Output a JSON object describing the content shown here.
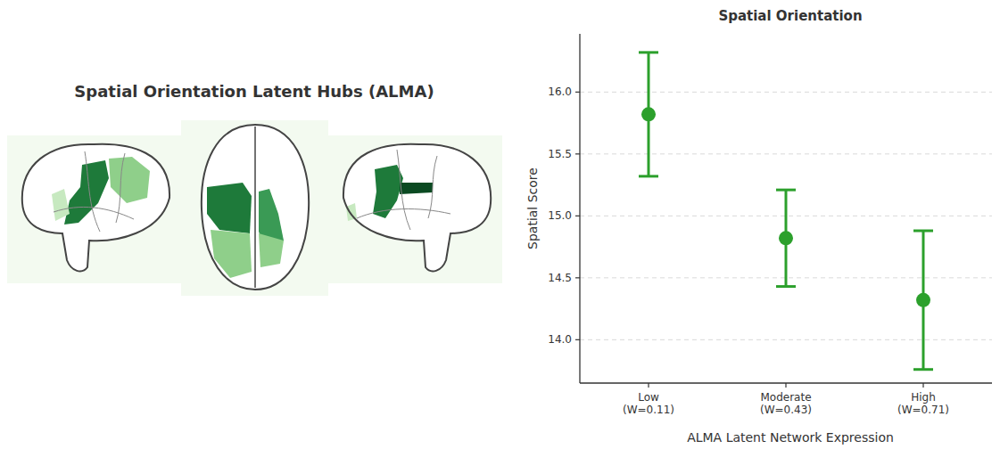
{
  "chart_data": [
    {
      "type": "brain_map",
      "title": "Spatial Orientation Latent Hubs (ALMA)"
    },
    {
      "type": "point",
      "title": "Spatial Orientation",
      "x_label": "ALMA Latent Network Expression",
      "y_label": "Spatial Score",
      "categories": [
        "Low\n(W=0.11)",
        "Moderate\n(W=0.43)",
        "High\n(W=0.71)"
      ],
      "values": [
        15.82,
        14.82,
        14.32
      ],
      "errors": [
        0.5,
        0.39,
        0.56
      ],
      "color": "#2ca02c",
      "marker": "circle",
      "ylim": [
        13.65,
        16.47
      ],
      "yticks": [
        {
          "value": 14,
          "label": "14.0"
        },
        {
          "value": 14.5,
          "label": "14.5"
        },
        {
          "value": 15,
          "label": "15.0"
        },
        {
          "value": 15.5,
          "label": "15.5"
        },
        {
          "value": 16,
          "label": "16.0"
        }
      ],
      "grid": true
    }
  ]
}
